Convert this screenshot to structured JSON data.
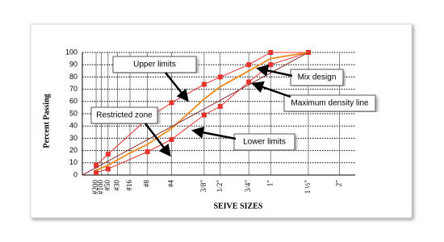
{
  "chart_data": {
    "type": "line",
    "y_label": "Percent Passing",
    "x_label": "SEIVE SIZES",
    "x_scale_power": 0.45,
    "xlim": [
      0,
      57
    ],
    "xticks": [
      {
        "value": 0.075,
        "label": "#200"
      },
      {
        "value": 0.15,
        "label": "#100"
      },
      {
        "value": 0.3,
        "label": "#50"
      },
      {
        "value": 0.6,
        "label": "#30"
      },
      {
        "value": 1.18,
        "label": "#16"
      },
      {
        "value": 2.36,
        "label": "#8"
      },
      {
        "value": 4.75,
        "label": "#4"
      },
      {
        "value": 9.5,
        "label": "3/8\""
      },
      {
        "value": 12.5,
        "label": "1/2\""
      },
      {
        "value": 19,
        "label": "3/4\""
      },
      {
        "value": 25,
        "label": "1\""
      },
      {
        "value": 37.5,
        "label": "1 ½\""
      },
      {
        "value": 50,
        "label": "2\""
      }
    ],
    "ylim": [
      0,
      100
    ],
    "yticks": [
      0,
      10,
      20,
      30,
      40,
      50,
      60,
      70,
      80,
      90,
      100
    ],
    "grid": true,
    "series": [
      {
        "name": "Upper limits",
        "color": "#e8322e",
        "marker": "square",
        "x": [
          0.075,
          0.3,
          2.36,
          4.75,
          9.5,
          12.5,
          19,
          25,
          37.5
        ],
        "values": [
          8,
          17,
          46,
          59,
          74,
          80,
          90,
          100,
          100
        ]
      },
      {
        "name": "Lower limits",
        "color": "#e8322e",
        "marker": "square",
        "x": [
          0.075,
          0.3,
          2.36,
          4.75,
          9.5,
          12.5,
          19,
          25,
          37.5
        ],
        "values": [
          2,
          5,
          19,
          29,
          49,
          56,
          76,
          90,
          100
        ]
      },
      {
        "name": "Mix design",
        "color": "#f08a1c",
        "marker": "none",
        "x": [
          0.075,
          0.3,
          1.18,
          2.36,
          4.75,
          9.5,
          12.5,
          19,
          25,
          37.5
        ],
        "values": [
          4,
          8,
          18,
          25,
          38,
          62,
          72,
          85,
          95,
          100
        ]
      },
      {
        "name": "Maximum density line",
        "color": "#8b2a2a",
        "marker": "none",
        "x": [
          0,
          37.5
        ],
        "values": [
          0,
          100
        ]
      }
    ],
    "annotations": [
      "Upper limits",
      "Restricted zone",
      "Mix design",
      "Maximum density line",
      "Lower limits"
    ]
  }
}
